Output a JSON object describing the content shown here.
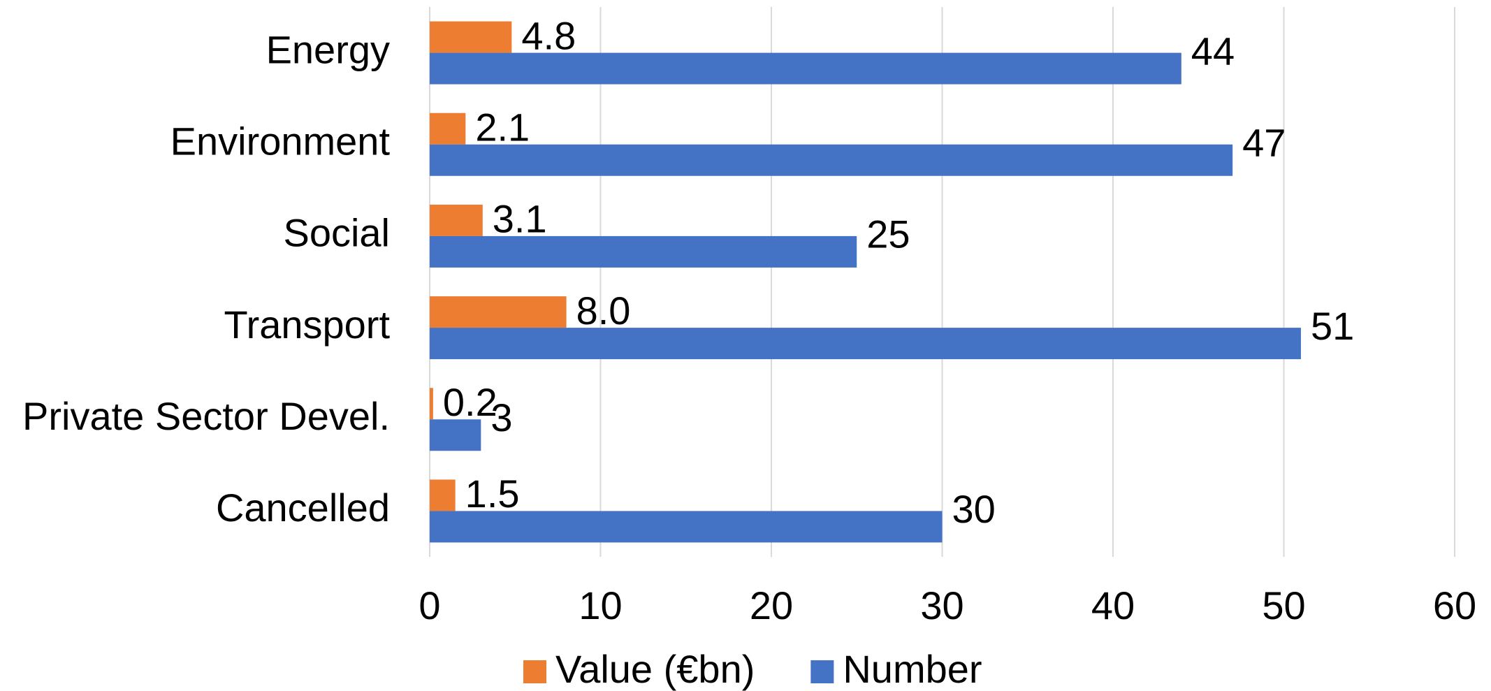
{
  "chart_data": {
    "type": "hbar",
    "categories": [
      "Energy",
      "Environment",
      "Social",
      "Transport",
      "Private Sector Devel.",
      "Cancelled"
    ],
    "series": [
      {
        "name": "Value (€bn)",
        "color": "#ed7d31",
        "values": [
          4.8,
          2.1,
          3.1,
          8.0,
          0.2,
          1.5
        ],
        "value_labels": [
          "4.8",
          "2.1",
          "3.1",
          "8.0",
          "0.2",
          "1.5"
        ]
      },
      {
        "name": "Number",
        "color": "#4472c4",
        "values": [
          44,
          47,
          25,
          51,
          3,
          30
        ]
      }
    ],
    "xlim": [
      0,
      60
    ],
    "xticks": [
      0,
      10,
      20,
      30,
      40,
      50,
      60
    ],
    "grid": true,
    "legend": "bottom"
  }
}
